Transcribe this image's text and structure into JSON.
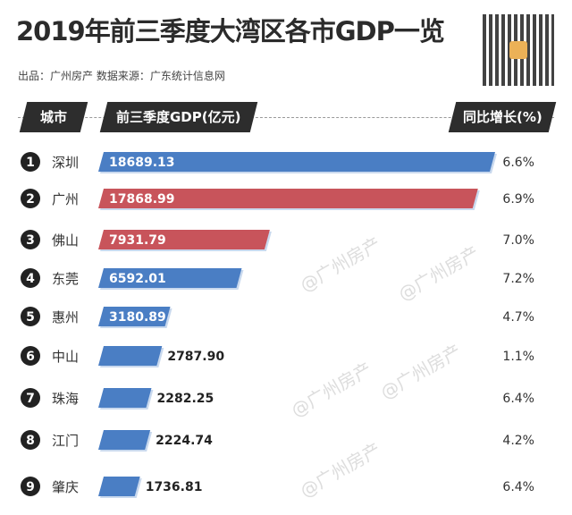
{
  "title": "2019年前三季度大湾区各市GDP一览",
  "subtitle": "出品：广州房产  数据来源：广东统计信息网",
  "watermark": "@广州房产",
  "headers": {
    "city": "城市",
    "gdp": "前三季度GDP(亿元)",
    "growth": "同比增长(%)"
  },
  "colors": {
    "blue": "#4a7ec4",
    "red": "#c8545b",
    "header": "#2d2d2d"
  },
  "chart_data": {
    "type": "bar",
    "orientation": "horizontal",
    "title": "2019年前三季度大湾区各市GDP一览",
    "categories": [
      "深圳",
      "广州",
      "佛山",
      "东莞",
      "惠州",
      "中山",
      "珠海",
      "江门",
      "肇庆"
    ],
    "ranks": [
      1,
      2,
      3,
      4,
      5,
      6,
      7,
      8,
      9
    ],
    "values": [
      18689.13,
      17868.99,
      7931.79,
      6592.01,
      3180.89,
      2787.9,
      2282.25,
      2224.74,
      1736.81
    ],
    "value_labels": [
      "18689.13",
      "17868.99",
      "7931.79",
      "6592.01",
      "3180.89",
      "2787.90",
      "2282.25",
      "2224.74",
      "1736.81"
    ],
    "growth": [
      "6.6%",
      "6.9%",
      "7.0%",
      "7.2%",
      "4.7%",
      "1.1%",
      "6.4%",
      "4.2%",
      "6.4%"
    ],
    "bar_colors": [
      "blue",
      "red",
      "red",
      "blue",
      "blue",
      "blue",
      "blue",
      "blue",
      "blue"
    ]
  }
}
